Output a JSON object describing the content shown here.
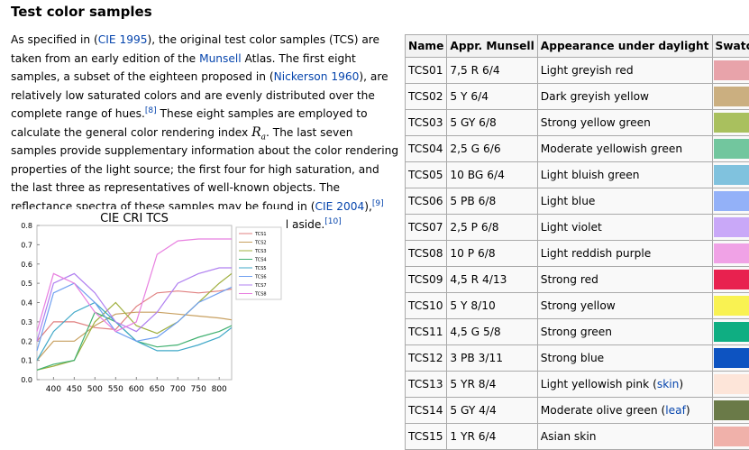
{
  "heading": "Test color samples",
  "paragraph": [
    {
      "kind": "t",
      "text": "As specified in ("
    },
    {
      "kind": "a",
      "text": "CIE 1995"
    },
    {
      "kind": "t",
      "text": "), the original test color samples (TCS) are taken from an early edition of the "
    },
    {
      "kind": "a",
      "text": "Munsell"
    },
    {
      "kind": "t",
      "text": " Atlas. The first eight samples, a subset of the eighteen proposed in ("
    },
    {
      "kind": "a",
      "text": "Nickerson 1960"
    },
    {
      "kind": "t",
      "text": "), are relatively low saturated colors and are evenly distributed over the complete range of hues."
    },
    {
      "kind": "sup",
      "text": "[8]"
    },
    {
      "kind": "t",
      "text": " These eight samples are employed to calculate the general color rendering index "
    },
    {
      "kind": "math",
      "text": "R"
    },
    {
      "kind": "sub",
      "text": "a"
    },
    {
      "kind": "t",
      "text": ". The last seven samples provide supplementary information about the color rendering properties of the light source; the first four for high saturation, and the last three as representatives of well-known objects. The reflectance spectra of these samples may be found in ("
    },
    {
      "kind": "a",
      "text": "CIE 2004"
    },
    {
      "kind": "t",
      "text": "),"
    },
    {
      "kind": "sup",
      "text": "[9]"
    },
    {
      "kind": "t",
      "text": " and their approximate Munsell notations are listed aside."
    },
    {
      "kind": "sup",
      "text": "[10]"
    }
  ],
  "table": {
    "header": [
      "Name",
      "Appr. Munsell",
      "Appearance under daylight",
      "Swatch"
    ],
    "rows": [
      {
        "name": "TCS01",
        "munsell": "7,5 R 6/4",
        "appearance": [
          {
            "text": "Light greyish red"
          }
        ],
        "swatch": "#e8a3aa"
      },
      {
        "name": "TCS02",
        "munsell": "5 Y 6/4",
        "appearance": [
          {
            "text": "Dark greyish yellow"
          }
        ],
        "swatch": "#cbaf80"
      },
      {
        "name": "TCS03",
        "munsell": "5 GY 6/8",
        "appearance": [
          {
            "text": "Strong yellow green"
          }
        ],
        "swatch": "#a9c05e"
      },
      {
        "name": "TCS04",
        "munsell": "2,5 G 6/6",
        "appearance": [
          {
            "text": "Moderate yellowish green"
          }
        ],
        "swatch": "#72c69e"
      },
      {
        "name": "TCS05",
        "munsell": "10 BG 6/4",
        "appearance": [
          {
            "text": "Light bluish green"
          }
        ],
        "swatch": "#80c2de"
      },
      {
        "name": "TCS06",
        "munsell": "5 PB 6/8",
        "appearance": [
          {
            "text": "Light blue"
          }
        ],
        "swatch": "#93b1f8"
      },
      {
        "name": "TCS07",
        "munsell": "2,5 P 6/8",
        "appearance": [
          {
            "text": "Light violet"
          }
        ],
        "swatch": "#c9a8f8"
      },
      {
        "name": "TCS08",
        "munsell": "10 P 6/8",
        "appearance": [
          {
            "text": "Light reddish purple"
          }
        ],
        "swatch": "#f0a2e6"
      },
      {
        "name": "TCS09",
        "munsell": "4,5 R 4/13",
        "appearance": [
          {
            "text": "Strong red"
          }
        ],
        "swatch": "#e8214f"
      },
      {
        "name": "TCS10",
        "munsell": "5 Y 8/10",
        "appearance": [
          {
            "text": "Strong yellow"
          }
        ],
        "swatch": "#f9f252"
      },
      {
        "name": "TCS11",
        "munsell": "4,5 G 5/8",
        "appearance": [
          {
            "text": "Strong green"
          }
        ],
        "swatch": "#0fae82"
      },
      {
        "name": "TCS12",
        "munsell": "3 PB 3/11",
        "appearance": [
          {
            "text": "Strong blue"
          }
        ],
        "swatch": "#0d53c1"
      },
      {
        "name": "TCS13",
        "munsell": "5 YR 8/4",
        "appearance": [
          {
            "text": "Light yellowish pink ("
          },
          {
            "text": "skin",
            "link": true
          },
          {
            "text": ")"
          }
        ],
        "swatch": "#fde5d9"
      },
      {
        "name": "TCS14",
        "munsell": "5 GY 4/4",
        "appearance": [
          {
            "text": "Moderate olive green ("
          },
          {
            "text": "leaf",
            "link": true
          },
          {
            "text": ")"
          }
        ],
        "swatch": "#6a7a48"
      },
      {
        "name": "TCS15",
        "munsell": "1 YR 6/4",
        "appearance": [
          {
            "text": "Asian skin"
          }
        ],
        "swatch": "#f0b1aa"
      }
    ]
  },
  "chart_data": {
    "type": "line",
    "title": "CIE CRI TCS",
    "x": [
      360,
      400,
      450,
      500,
      550,
      600,
      650,
      700,
      750,
      800,
      830
    ],
    "xlim": [
      360,
      830
    ],
    "xticks": [
      400,
      450,
      500,
      550,
      600,
      650,
      700,
      750,
      800
    ],
    "ylim": [
      0,
      0.8
    ],
    "yticks": [
      {
        "value": 0,
        "label": "0.0"
      },
      0.1,
      0.2,
      0.3,
      0.4,
      0.5,
      0.6,
      0.7,
      0.8
    ],
    "grid": false,
    "legend": "right",
    "series": [
      {
        "name": "TCS1",
        "color": "#e08080",
        "values": [
          0.2,
          0.3,
          0.3,
          0.27,
          0.26,
          0.38,
          0.45,
          0.46,
          0.45,
          0.46,
          0.47
        ]
      },
      {
        "name": "TCS2",
        "color": "#c8a060",
        "values": [
          0.1,
          0.2,
          0.2,
          0.28,
          0.34,
          0.35,
          0.35,
          0.34,
          0.33,
          0.32,
          0.31
        ]
      },
      {
        "name": "TCS3",
        "color": "#a0b040",
        "values": [
          0.05,
          0.07,
          0.1,
          0.3,
          0.4,
          0.28,
          0.24,
          0.3,
          0.4,
          0.5,
          0.55
        ]
      },
      {
        "name": "TCS4",
        "color": "#40b070",
        "values": [
          0.05,
          0.08,
          0.1,
          0.35,
          0.3,
          0.2,
          0.17,
          0.18,
          0.22,
          0.25,
          0.28
        ]
      },
      {
        "name": "TCS5",
        "color": "#40a8c8",
        "values": [
          0.1,
          0.25,
          0.35,
          0.4,
          0.3,
          0.2,
          0.15,
          0.15,
          0.18,
          0.22,
          0.27
        ]
      },
      {
        "name": "TCS6",
        "color": "#70a0f0",
        "values": [
          0.15,
          0.45,
          0.5,
          0.4,
          0.25,
          0.2,
          0.22,
          0.3,
          0.4,
          0.45,
          0.48
        ]
      },
      {
        "name": "TCS7",
        "color": "#b080f0",
        "values": [
          0.2,
          0.5,
          0.55,
          0.45,
          0.3,
          0.25,
          0.35,
          0.5,
          0.55,
          0.58,
          0.58
        ]
      },
      {
        "name": "TCS8",
        "color": "#e880e0",
        "values": [
          0.25,
          0.55,
          0.5,
          0.35,
          0.25,
          0.3,
          0.65,
          0.72,
          0.73,
          0.73,
          0.73
        ]
      }
    ]
  }
}
